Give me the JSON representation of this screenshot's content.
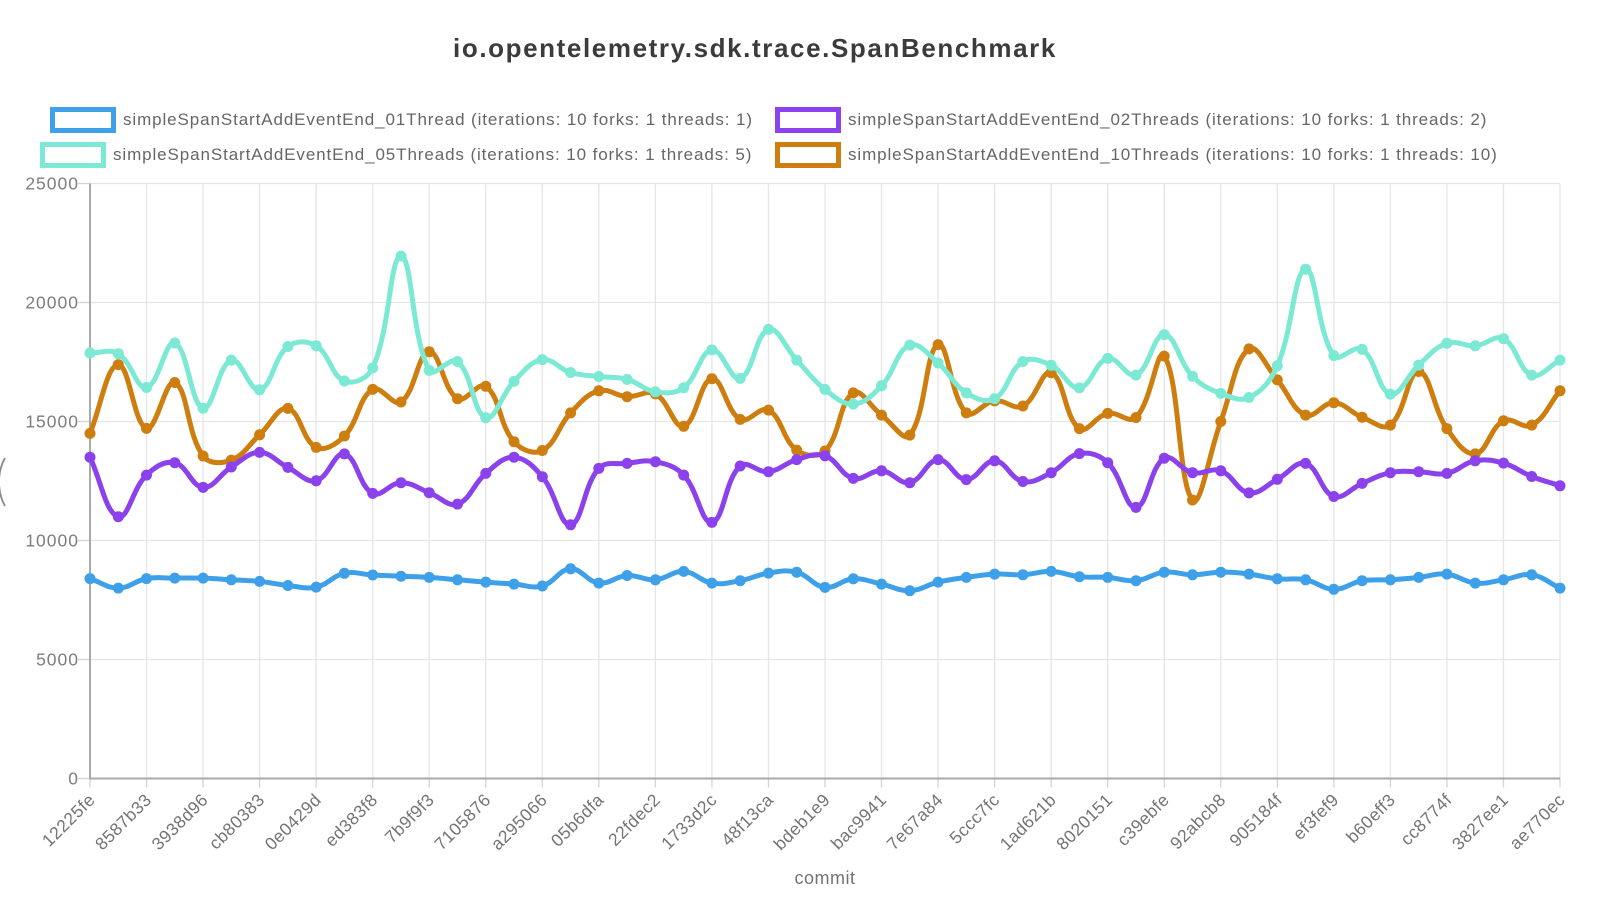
{
  "title": "io.opentelemetry.sdk.trace.SpanBenchmark",
  "y_axis_label_clipped": true,
  "chart_data": {
    "type": "line",
    "title": "io.opentelemetry.sdk.trace.SpanBenchmark",
    "xlabel": "commit",
    "ylabel": "",
    "ylim": [
      0,
      25000
    ],
    "y_ticks": [
      0,
      5000,
      10000,
      15000,
      20000,
      25000
    ],
    "grid": true,
    "legend_position": "top",
    "points_per_category": 2,
    "categories": [
      "12225fe",
      "8587b33",
      "3938d96",
      "cb80383",
      "0e0429d",
      "ed383f8",
      "7b9f9f3",
      "7105876",
      "a295066",
      "05b6dfa",
      "22fdec2",
      "1733d2c",
      "48f13ca",
      "bdeb1e9",
      "bac9941",
      "7e67a84",
      "5ccc7fc",
      "1ad621b",
      "8020151",
      "c39ebfe",
      "92abcb8",
      "905184f",
      "ef3fef9",
      "b60eff3",
      "cc8774f",
      "3827ee1",
      "ae770ec"
    ],
    "series": [
      {
        "name": "simpleSpanStartAddEventEnd_01Thread (iterations: 10 forks: 1 threads: 1)",
        "color": "#3EA0E9",
        "values": [
          8400,
          8000,
          8400,
          8420,
          8420,
          8350,
          8280,
          8110,
          8040,
          8620,
          8550,
          8500,
          8450,
          8350,
          8250,
          8170,
          8090,
          8810,
          8210,
          8530,
          8350,
          8700,
          8210,
          8310,
          8630,
          8670,
          8030,
          8390,
          8170,
          7890,
          8250,
          8450,
          8590,
          8560,
          8700,
          8480,
          8450,
          8310,
          8670,
          8560,
          8670,
          8590,
          8390,
          8350,
          7950,
          8310,
          8350,
          8450,
          8590,
          8210,
          8350,
          8560,
          8000
        ]
      },
      {
        "name": "simpleSpanStartAddEventEnd_02Threads (iterations: 10 forks: 1 threads: 2)",
        "color": "#8B42EC",
        "values": [
          13500,
          11000,
          12750,
          13270,
          12230,
          13090,
          13700,
          13070,
          12510,
          13640,
          11980,
          12430,
          12010,
          11530,
          12820,
          13500,
          12680,
          10660,
          13030,
          13240,
          13310,
          12750,
          10760,
          13130,
          12890,
          13400,
          13560,
          12610,
          12930,
          12430,
          13400,
          12560,
          13350,
          12480,
          12850,
          13650,
          13270,
          11390,
          13460,
          12850,
          12930,
          12000,
          12570,
          13240,
          11850,
          12400,
          12850,
          12890,
          12820,
          13350,
          13250,
          12690,
          12300
        ]
      },
      {
        "name": "simpleSpanStartAddEventEnd_05Threads (iterations: 10 forks: 1 threads: 5)",
        "color": "#7CE9D4",
        "values": [
          17880,
          17850,
          16430,
          18300,
          15560,
          17580,
          16330,
          18150,
          18180,
          16700,
          17250,
          21950,
          17150,
          17520,
          15160,
          16690,
          17600,
          17060,
          16890,
          16770,
          16250,
          16420,
          18010,
          16810,
          18870,
          17580,
          16350,
          15730,
          16500,
          18210,
          17460,
          16200,
          15960,
          17520,
          17360,
          16410,
          17650,
          16950,
          18650,
          16900,
          16180,
          16010,
          17340,
          21400,
          17770,
          18030,
          16150,
          17370,
          18290,
          18180,
          18480,
          16950,
          17580
        ]
      },
      {
        "name": "simpleSpanStartAddEventEnd_10Threads (iterations: 10 forks: 1 threads: 10)",
        "color": "#CE7D0F",
        "values": [
          14500,
          17390,
          14710,
          16640,
          13550,
          13380,
          14440,
          15550,
          13910,
          14390,
          16350,
          15820,
          17930,
          15960,
          16480,
          14150,
          13780,
          15360,
          16290,
          16040,
          16160,
          14800,
          16800,
          15090,
          15480,
          13800,
          13760,
          16200,
          15270,
          14430,
          18230,
          15360,
          15870,
          15650,
          17050,
          14700,
          15340,
          15170,
          17750,
          11700,
          15000,
          18050,
          16750,
          15270,
          15790,
          15180,
          14850,
          17100,
          14700,
          13640,
          15030,
          14850,
          16290
        ]
      }
    ]
  }
}
